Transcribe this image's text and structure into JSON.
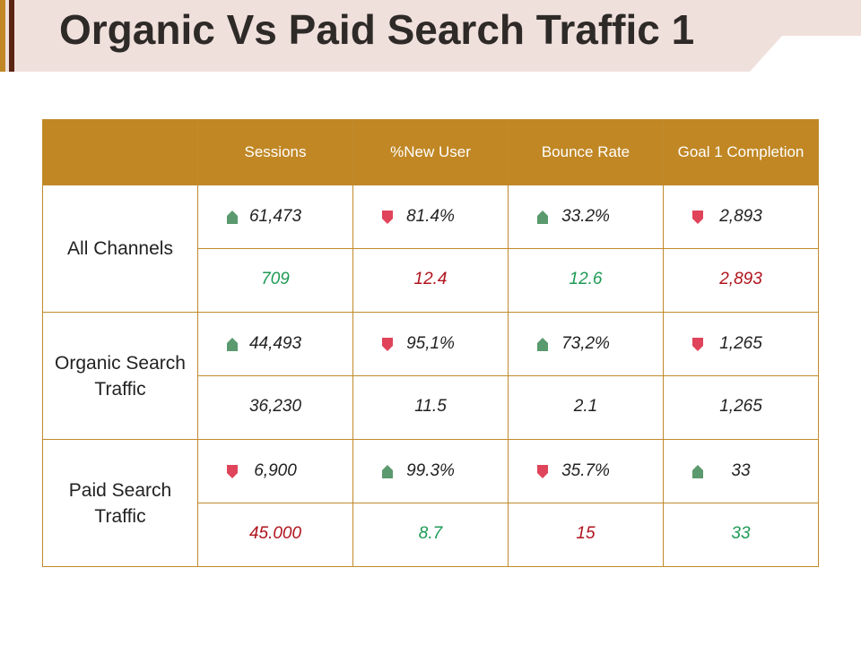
{
  "title": "Organic Vs Paid Search Traffic 1",
  "colors": {
    "header_bg": "#c08724",
    "border": "#c08a2c",
    "up": "#5a9a6e",
    "down": "#e0445a",
    "green_text": "#1e9a55",
    "red_text": "#b0141d",
    "title_band": "#f0e0dc",
    "accent_bar": "#7a3a1c"
  },
  "table": {
    "headers": [
      "Sessions",
      "%New User",
      "Bounce Rate",
      "Goal 1 Completion"
    ],
    "groups": [
      {
        "label": "All Channels",
        "metrics": [
          {
            "value": "61,473",
            "trend": "up"
          },
          {
            "value": "81.4%",
            "trend": "down"
          },
          {
            "value": "33.2%",
            "trend": "up"
          },
          {
            "value": "2,893",
            "trend": "down"
          }
        ],
        "changes": [
          {
            "value": "709",
            "color": "green"
          },
          {
            "value": "12.4",
            "color": "red"
          },
          {
            "value": "12.6",
            "color": "green"
          },
          {
            "value": "2,893",
            "color": "red"
          }
        ]
      },
      {
        "label": "Organic Search Traffic",
        "metrics": [
          {
            "value": "44,493",
            "trend": "up"
          },
          {
            "value": "95,1%",
            "trend": "down"
          },
          {
            "value": "73,2%",
            "trend": "up"
          },
          {
            "value": "1,265",
            "trend": "down"
          }
        ],
        "changes": [
          {
            "value": "36,230",
            "color": "dark"
          },
          {
            "value": "11.5",
            "color": "dark"
          },
          {
            "value": "2.1",
            "color": "dark"
          },
          {
            "value": "1,265",
            "color": "dark"
          }
        ]
      },
      {
        "label": "Paid Search Traffic",
        "metrics": [
          {
            "value": "6,900",
            "trend": "down"
          },
          {
            "value": "99.3%",
            "trend": "up"
          },
          {
            "value": "35.7%",
            "trend": "down"
          },
          {
            "value": "33",
            "trend": "up"
          }
        ],
        "changes": [
          {
            "value": "45.000",
            "color": "red"
          },
          {
            "value": "8.7",
            "color": "green"
          },
          {
            "value": "15",
            "color": "red"
          },
          {
            "value": "33",
            "color": "green"
          }
        ]
      }
    ]
  }
}
